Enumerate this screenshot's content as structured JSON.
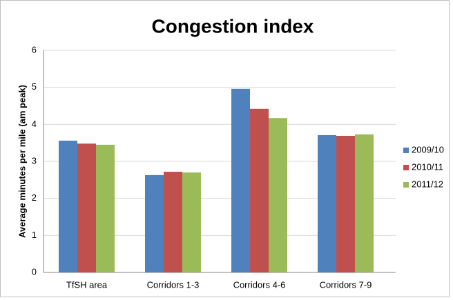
{
  "chart_data": {
    "type": "bar",
    "title": "Congestion index",
    "y_label": "Average minutes per mile (am peak)",
    "categories": [
      "TfSH area",
      "Corridors 1-3",
      "Corridors 4-6",
      "Corridors 7-9"
    ],
    "series": [
      {
        "name": "2009/10",
        "color": "#4f81bd",
        "values": [
          3.56,
          2.63,
          4.96,
          3.71
        ]
      },
      {
        "name": "2010/11",
        "color": "#c0504d",
        "values": [
          3.48,
          2.72,
          4.42,
          3.69
        ]
      },
      {
        "name": "2011/12",
        "color": "#9bbb59",
        "values": [
          3.45,
          2.7,
          4.17,
          3.73
        ]
      }
    ],
    "ylim": [
      0,
      6
    ],
    "yticks": [
      0,
      1,
      2,
      3,
      4,
      5,
      6
    ],
    "grid": true,
    "legend": "right"
  }
}
